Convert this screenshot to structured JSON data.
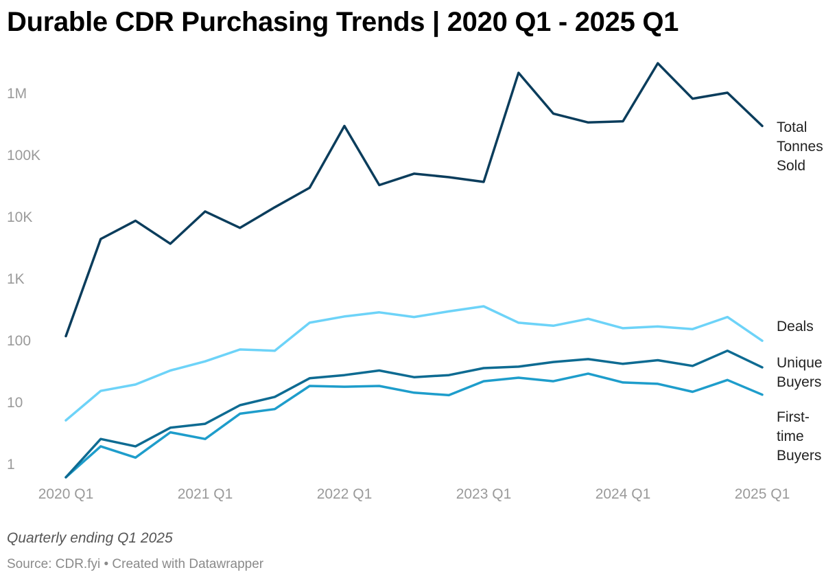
{
  "title": "Durable CDR Purchasing Trends | 2020 Q1 - 2025 Q1",
  "subtitle": "Quarterly ending Q1 2025",
  "source": "Source: CDR.fyi • Created with Datawrapper",
  "chart_data": {
    "type": "line",
    "yscale": "log",
    "ylim": [
      1,
      3000000
    ],
    "y_ticks": [
      {
        "value": 1,
        "label": "1"
      },
      {
        "value": 10,
        "label": "10"
      },
      {
        "value": 100,
        "label": "100"
      },
      {
        "value": 1000,
        "label": "1K"
      },
      {
        "value": 10000,
        "label": "10K"
      },
      {
        "value": 100000,
        "label": "100K"
      },
      {
        "value": 1000000,
        "label": "1M"
      }
    ],
    "x": [
      "2020 Q1",
      "2020 Q2",
      "2020 Q3",
      "2020 Q4",
      "2021 Q1",
      "2021 Q2",
      "2021 Q3",
      "2021 Q4",
      "2022 Q1",
      "2022 Q2",
      "2022 Q3",
      "2022 Q4",
      "2023 Q1",
      "2023 Q2",
      "2023 Q3",
      "2023 Q4",
      "2024 Q1",
      "2024 Q2",
      "2024 Q3",
      "2024 Q4",
      "2025 Q1"
    ],
    "x_tick_labels": [
      "2020 Q1",
      "2021 Q1",
      "2022 Q1",
      "2023 Q1",
      "2024 Q1",
      "2025 Q1"
    ],
    "grid": false,
    "legend": "direct labels at right",
    "series": [
      {
        "name": "Total Tonnes Sold",
        "label_lines": [
          "Total",
          "Tonnes",
          "Sold"
        ],
        "color": "#0b3d5c",
        "values": [
          115,
          4300,
          8500,
          3600,
          12000,
          6500,
          14000,
          29000,
          290000,
          32000,
          49000,
          43000,
          36000,
          2100000,
          460000,
          330000,
          345000,
          3000000,
          800000,
          1000000,
          290000
        ]
      },
      {
        "name": "Deals",
        "label_lines": [
          "Deals"
        ],
        "color": "#6dd3f8",
        "values": [
          5,
          15,
          19,
          32,
          45,
          70,
          67,
          190,
          240,
          280,
          235,
          290,
          350,
          190,
          170,
          220,
          155,
          165,
          150,
          235,
          97
        ]
      },
      {
        "name": "Unique Buyers",
        "label_lines": [
          "Unique",
          "Buyers"
        ],
        "color": "#0e6b92",
        "values": [
          0.6,
          2.5,
          1.9,
          3.8,
          4.4,
          8.8,
          12,
          24,
          27,
          32,
          25,
          27,
          35,
          37,
          44,
          49,
          41,
          47,
          38,
          67,
          36
        ]
      },
      {
        "name": "First-time Buyers",
        "label_lines": [
          "First-",
          "time",
          "Buyers"
        ],
        "color": "#1e9dcb",
        "values": [
          0.6,
          1.9,
          1.25,
          3.2,
          2.5,
          6.4,
          7.6,
          18,
          17.5,
          18,
          14,
          12.8,
          21.5,
          24.5,
          21.5,
          28.5,
          20.5,
          19.5,
          14.5,
          22.5,
          13
        ]
      }
    ]
  }
}
